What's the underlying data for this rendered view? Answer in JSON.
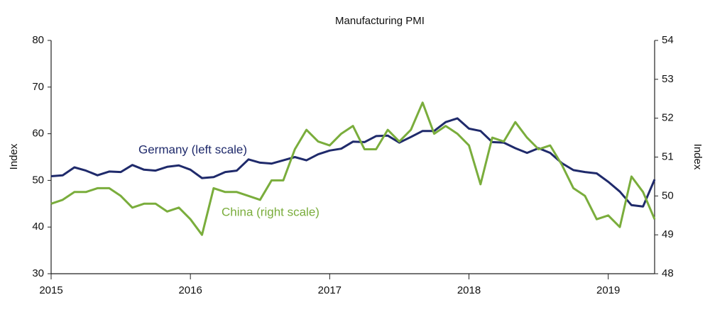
{
  "chart_data": {
    "type": "line",
    "title": "Manufacturing PMI",
    "ylabel": "Index",
    "y2label": "Index",
    "x": [
      2015,
      2015.083,
      2015.167,
      2015.25,
      2015.333,
      2015.417,
      2015.5,
      2015.583,
      2015.667,
      2015.75,
      2015.833,
      2015.917,
      2016,
      2016.083,
      2016.167,
      2016.25,
      2016.333,
      2016.417,
      2016.5,
      2016.583,
      2016.667,
      2016.75,
      2016.833,
      2016.917,
      2017,
      2017.083,
      2017.167,
      2017.25,
      2017.333,
      2017.417,
      2017.5,
      2017.583,
      2017.667,
      2017.75,
      2017.833,
      2017.917,
      2018,
      2018.083,
      2018.167,
      2018.25,
      2018.333,
      2018.417,
      2018.5,
      2018.583,
      2018.667,
      2018.75,
      2018.833,
      2018.917,
      2019,
      2019.083,
      2019.167,
      2019.25,
      2019.333
    ],
    "xlim": [
      2015,
      2019.333
    ],
    "xticks": [
      2015,
      2016,
      2017,
      2018,
      2019
    ],
    "ylim": [
      30,
      80
    ],
    "yticks": [
      30,
      40,
      50,
      60,
      70,
      80
    ],
    "y2lim": [
      48,
      54
    ],
    "y2ticks": [
      48,
      49,
      50,
      51,
      52,
      53,
      54
    ],
    "series": [
      {
        "name": "Germany (left scale)",
        "color": "#1f2a6b",
        "values": [
          50.9,
          51.1,
          52.8,
          52.1,
          51.1,
          51.9,
          51.8,
          53.3,
          52.3,
          52.1,
          52.9,
          53.2,
          52.3,
          50.5,
          50.7,
          51.8,
          52.1,
          54.5,
          53.8,
          53.6,
          54.3,
          55.0,
          54.3,
          55.6,
          56.4,
          56.8,
          58.3,
          58.2,
          59.5,
          59.6,
          58.1,
          59.3,
          60.6,
          60.6,
          62.5,
          63.3,
          61.1,
          60.6,
          58.2,
          58.1,
          56.9,
          55.9,
          56.9,
          55.9,
          53.7,
          52.2,
          51.8,
          51.5,
          49.7,
          47.6,
          44.7,
          44.4,
          50.2
        ]
      },
      {
        "name": "China (right scale)",
        "color": "#7aad3c",
        "axis": "y2",
        "values": [
          49.8,
          49.9,
          50.1,
          50.1,
          50.2,
          50.2,
          50.0,
          49.7,
          49.8,
          49.8,
          49.6,
          49.7,
          49.4,
          49.0,
          50.2,
          50.1,
          50.1,
          50.0,
          49.9,
          50.4,
          50.4,
          51.2,
          51.7,
          51.4,
          51.3,
          51.6,
          51.8,
          51.2,
          51.2,
          51.7,
          51.4,
          51.7,
          52.4,
          51.6,
          51.8,
          51.6,
          51.3,
          50.3,
          51.5,
          51.4,
          51.9,
          51.5,
          51.2,
          51.3,
          50.8,
          50.2,
          50.0,
          49.4,
          49.5,
          49.2,
          50.5,
          50.1,
          49.4
        ]
      }
    ]
  }
}
